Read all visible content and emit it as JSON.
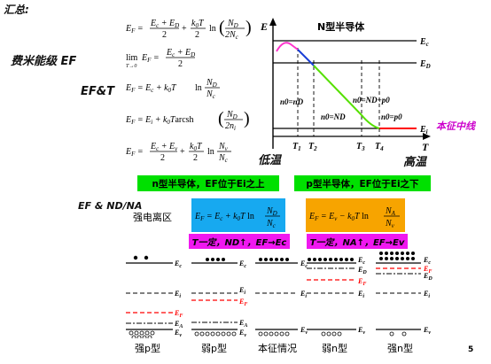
{
  "handwritten": {
    "summary": "汇总:",
    "fermi_level": "费米能级 EF",
    "ef_vs_t": "EF&T",
    "ef_vs_nd_na": "EF & ND/NA",
    "low_temp": "低温",
    "high_temp": "高温",
    "intrinsic_line": "本征中线"
  },
  "equations": {
    "ef_general": "E_F = (E_c+E_D)/2 + (k_0T/2) ln(N_D/2N_c)",
    "ef_limit": "lim_{T→0} E_F = (E_c+E_D)/2",
    "ef_ec": "E_F = E_c + k_0T ln(N_D/N_c)",
    "ef_arcsh": "E_F = E_i + k_0T arcsh(N_D/2n_i)",
    "ef_intrinsic": "E_F = (E_c+E_v)/2 + (k_0T/2) ln(N_v/N_c)"
  },
  "graph": {
    "title": "N型半导体",
    "y_axis": "E",
    "x_axis": "T",
    "levels": {
      "ec": "Ec",
      "ed": "ED",
      "ei": "Ei"
    },
    "regions": {
      "r1": "n0=nD",
      "r2": "n0=ND",
      "r3": "n0=ND+p0",
      "r4": "n0=p0"
    },
    "ticks": [
      "T1",
      "T2",
      "T3",
      "T4"
    ],
    "colors": {
      "pink": "#ff33cc",
      "blue": "#1a3fd6",
      "green": "#55e000",
      "red": "#ff0000"
    }
  },
  "boxes": {
    "n_type": "n型半导体，EF位于Ei之上",
    "p_type": "p型半导体，EF位于Ei之下",
    "strong_ionization": "强电离区",
    "n_formula": "EF = Ec + k0T ln(ND/Nc)",
    "p_formula": "EF = Ev − k0T ln(NA/Nv)",
    "n_trend": "T一定，ND↑，EF→Ec",
    "p_trend": "T一定，NA↑，EF→Ev"
  },
  "band_diagrams": {
    "labels": [
      "强p型",
      "弱p型",
      "本征情况",
      "弱n型",
      "强n型"
    ],
    "level_names": {
      "ec": "Ec",
      "ed": "ED",
      "ei": "Ei",
      "ef": "EF",
      "ea": "EA",
      "ev": "Ev"
    }
  },
  "page_number": "5"
}
